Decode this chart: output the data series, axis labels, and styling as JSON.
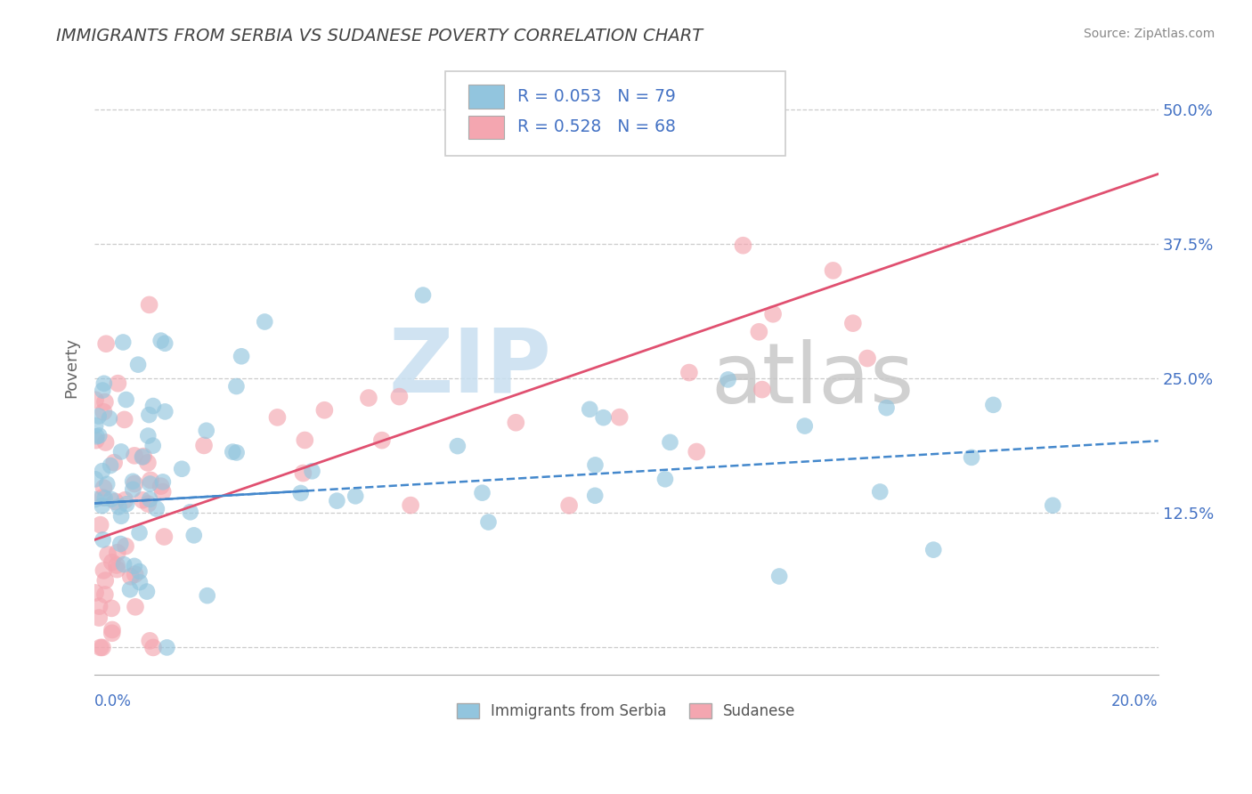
{
  "title": "IMMIGRANTS FROM SERBIA VS SUDANESE POVERTY CORRELATION CHART",
  "source": "Source: ZipAtlas.com",
  "ylabel": "Poverty",
  "y_ticks": [
    0.0,
    0.125,
    0.25,
    0.375,
    0.5
  ],
  "y_tick_labels": [
    "",
    "12.5%",
    "25.0%",
    "37.5%",
    "50.0%"
  ],
  "x_range": [
    0.0,
    0.2
  ],
  "y_range": [
    -0.025,
    0.545
  ],
  "color_blue": "#92c5de",
  "color_pink": "#f4a6b0",
  "color_blue_line": "#4488cc",
  "color_pink_line": "#e05070",
  "serbia_line_y0": 0.134,
  "serbia_line_y1": 0.192,
  "sudanese_line_y0": 0.1,
  "sudanese_line_y1": 0.44,
  "grid_color": "#cccccc",
  "grid_linestyle": "--",
  "spine_color": "#aaaaaa",
  "tick_label_color": "#4472c4",
  "title_color": "#444444",
  "source_color": "#888888",
  "ylabel_color": "#666666",
  "legend_r1": "R = 0.053",
  "legend_n1": "N = 79",
  "legend_r2": "R = 0.528",
  "legend_n2": "N = 68",
  "legend_text_color": "#4472c4",
  "bottom_label1": "Immigrants from Serbia",
  "bottom_label2": "Sudanese",
  "watermark_zip_color": "#c8dff0",
  "watermark_atlas_color": "#c8c8c8"
}
